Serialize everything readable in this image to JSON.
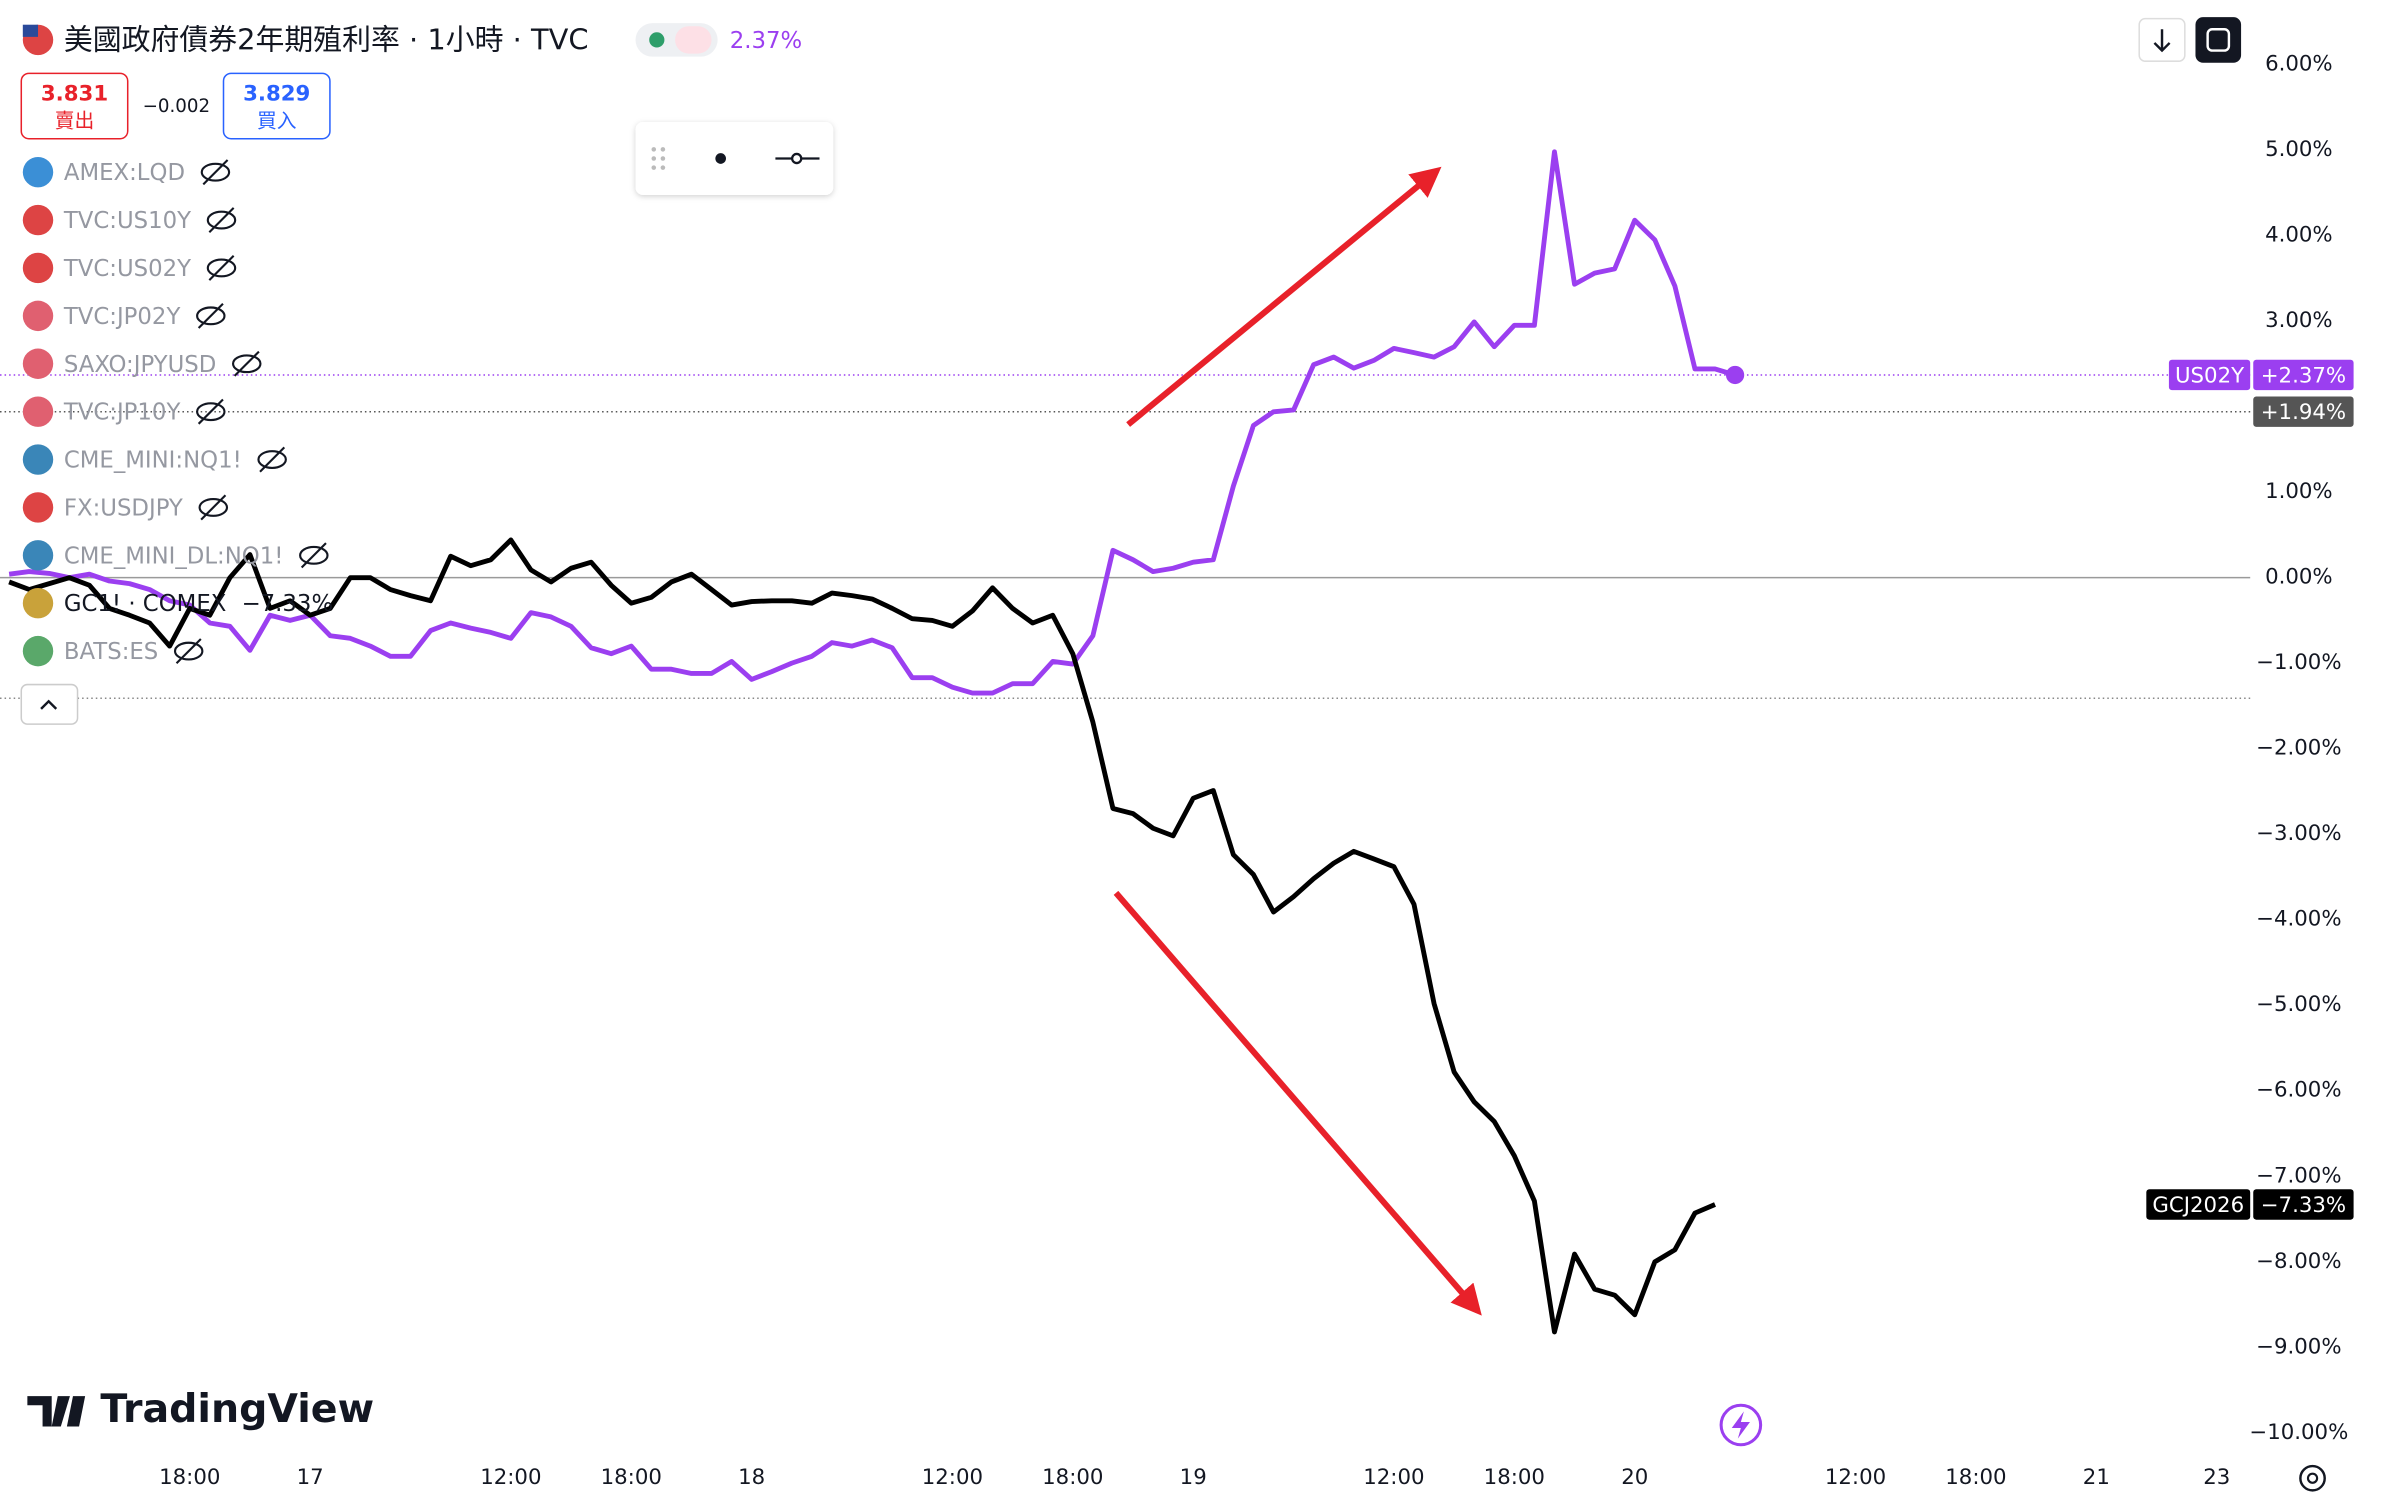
{
  "header": {
    "title": "美國政府債券2年期殖利率 · 1小時 · TVC",
    "change": "2.37%",
    "sell_price": "3.831",
    "sell_label": "賣出",
    "spread": "−0.002",
    "buy_price": "3.829",
    "buy_label": "買入"
  },
  "symbols": [
    {
      "name": "AMEX:LQD"
    },
    {
      "name": "TVC:US10Y"
    },
    {
      "name": "TVC:US02Y"
    },
    {
      "name": "TVC:JP02Y"
    },
    {
      "name": "SAXO:JPYUSD"
    },
    {
      "name": "TVC:JP10Y"
    },
    {
      "name": "CME_MINI:NQ1!"
    },
    {
      "name": "FX:USDJPY"
    },
    {
      "name": "CME_MINI_DL:NQ1!"
    },
    {
      "name": "GC1! · COMEX",
      "change": "−7.33%"
    },
    {
      "name": "BATS:ES"
    }
  ],
  "branding": "TradingView",
  "chart_data": {
    "type": "line",
    "categories": [
      null,
      null,
      null,
      null,
      null,
      null,
      null,
      null,
      null,
      "18:00",
      null,
      null,
      null,
      null,
      null,
      "17",
      null,
      null,
      null,
      null,
      null,
      null,
      null,
      null,
      null,
      "12:00",
      null,
      null,
      null,
      null,
      null,
      "18:00",
      null,
      null,
      null,
      null,
      null,
      "18",
      null,
      null,
      null,
      null,
      null,
      null,
      null,
      null,
      null,
      "12:00",
      null,
      null,
      null,
      null,
      null,
      "18:00",
      null,
      null,
      null,
      null,
      null,
      "19",
      null,
      null,
      null,
      null,
      null,
      null,
      null,
      null,
      null,
      "12:00",
      null,
      null,
      null,
      null,
      null,
      "18:00",
      null,
      null,
      null,
      null,
      null,
      "20",
      null,
      null,
      null,
      null,
      null,
      null,
      null,
      null,
      null,
      null,
      "12:00",
      null,
      null,
      null,
      null,
      null,
      "18:00",
      null,
      null,
      null,
      null,
      null,
      "21",
      null,
      null,
      null,
      null,
      null,
      "23"
    ],
    "series": [
      {
        "name": "US02Y",
        "color": "#9b3ff0",
        "last_label": "+2.37%",
        "values": [
          0.04,
          0.07,
          0.05,
          0,
          0.04,
          -0.04,
          -0.07,
          -0.14,
          -0.27,
          -0.32,
          -0.53,
          -0.57,
          -0.85,
          -0.44,
          -0.5,
          -0.44,
          -0.68,
          -0.71,
          -0.8,
          -0.92,
          -0.92,
          -0.62,
          -0.53,
          -0.59,
          -0.64,
          -0.71,
          -0.41,
          -0.46,
          -0.57,
          -0.82,
          -0.89,
          -0.8,
          -1.07,
          -1.07,
          -1.12,
          -1.12,
          -0.98,
          -1.19,
          -1.1,
          -1.0,
          -0.92,
          -0.76,
          -0.8,
          -0.73,
          -0.82,
          -1.17,
          -1.17,
          -1.28,
          -1.35,
          -1.35,
          -1.24,
          -1.24,
          -0.98,
          -1.01,
          -0.68,
          0.32,
          0.21,
          0.07,
          0.11,
          0.18,
          0.21,
          1.07,
          1.78,
          1.94,
          1.96,
          2.49,
          2.58,
          2.45,
          2.54,
          2.68,
          2.63,
          2.58,
          2.7,
          2.99,
          2.7,
          2.95,
          2.95,
          4.98,
          3.43,
          3.56,
          3.61,
          4.18,
          3.95,
          3.41,
          2.44,
          2.44,
          2.37,
          null,
          null,
          null,
          null,
          null,
          null,
          null,
          null,
          null,
          null,
          null,
          null,
          null,
          null,
          null,
          null,
          null,
          null,
          null,
          null,
          null,
          null,
          null,
          null
        ]
      },
      {
        "name": "GCJ2026",
        "color": "#000000",
        "last_label": "−7.33%",
        "values": [
          -0.05,
          -0.14,
          -0.07,
          0,
          -0.09,
          -0.36,
          -0.44,
          -0.53,
          -0.8,
          -0.36,
          -0.44,
          0,
          0.27,
          -0.36,
          -0.27,
          -0.44,
          -0.36,
          0,
          0,
          -0.14,
          -0.21,
          -0.27,
          0.25,
          0.14,
          0.21,
          0.44,
          0.09,
          -0.05,
          0.11,
          0.18,
          -0.09,
          -0.3,
          -0.23,
          -0.05,
          0.04,
          -0.14,
          -0.32,
          -0.28,
          -0.27,
          -0.27,
          -0.3,
          -0.18,
          -0.21,
          -0.25,
          -0.36,
          -0.48,
          -0.5,
          -0.57,
          -0.39,
          -0.12,
          -0.36,
          -0.53,
          -0.44,
          -0.89,
          -1.69,
          -2.7,
          -2.76,
          -2.93,
          -3.02,
          -2.58,
          -2.49,
          -3.24,
          -3.47,
          -3.91,
          -3.73,
          -3.52,
          -3.34,
          -3.2,
          -3.29,
          -3.38,
          -3.82,
          -4.98,
          -5.78,
          -6.13,
          -6.36,
          -6.76,
          -7.29,
          -8.82,
          -7.91,
          -8.32,
          -8.39,
          -8.62,
          -8.0,
          -7.86,
          -7.43,
          -7.33,
          null,
          null,
          null,
          null,
          null,
          null,
          null,
          null,
          null,
          null,
          null,
          null,
          null,
          null,
          null,
          null,
          null,
          null,
          null,
          null,
          null,
          null,
          null,
          null,
          null
        ]
      }
    ],
    "price_lines": [
      {
        "value": 1.94,
        "label": "+1.94%",
        "color": "#555555"
      }
    ],
    "ylim": [
      -10.2,
      6.75
    ],
    "yticks": [
      {
        "value": 6,
        "label": "6.00%"
      },
      {
        "value": 5,
        "label": "5.00%"
      },
      {
        "value": 4,
        "label": "4.00%"
      },
      {
        "value": 3,
        "label": "3.00%"
      },
      {
        "value": 2,
        "label": "2.00%"
      },
      {
        "value": 1,
        "label": "1.00%"
      },
      {
        "value": 0,
        "label": "0.00%"
      },
      {
        "value": -1,
        "label": "−1.00%"
      },
      {
        "value": -2,
        "label": "−2.00%"
      },
      {
        "value": -3,
        "label": "−3.00%"
      },
      {
        "value": -4,
        "label": "−4.00%"
      },
      {
        "value": -5,
        "label": "−5.00%"
      },
      {
        "value": -6,
        "label": "−6.00%"
      },
      {
        "value": -7,
        "label": "−7.00%"
      },
      {
        "value": -8,
        "label": "−8.00%"
      },
      {
        "value": -9,
        "label": "−9.00%"
      },
      {
        "value": -10,
        "label": "−10.00%"
      }
    ],
    "grid": false
  }
}
